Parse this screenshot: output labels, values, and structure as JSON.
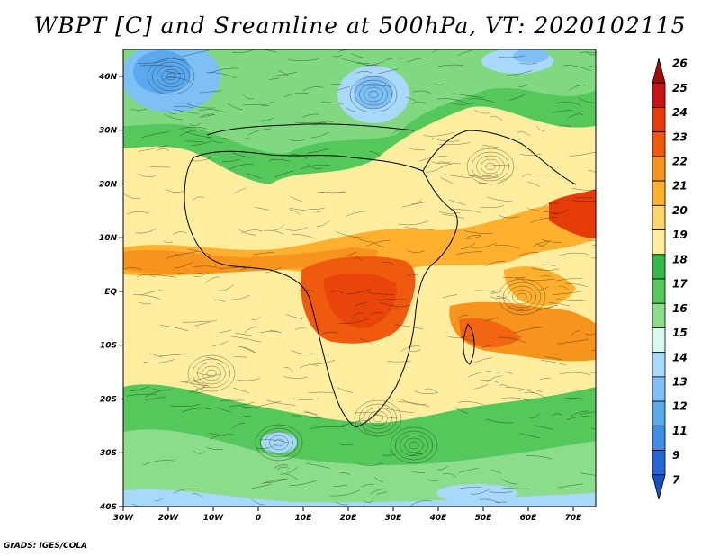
{
  "title": "WBPT [C] and Sreamline at 500hPa, VT: 2020102115",
  "credit": "GrADS: IGES/COLA",
  "map": {
    "lat_labels": [
      "40N",
      "30N",
      "20N",
      "10N",
      "EQ",
      "10S",
      "20S",
      "30S",
      "40S"
    ],
    "lon_labels": [
      "30W",
      "20W",
      "10W",
      "0",
      "10E",
      "20E",
      "30E",
      "40E",
      "50E",
      "60E",
      "70E"
    ],
    "lat_range": [
      -40,
      45
    ],
    "lon_range": [
      -30,
      75
    ]
  },
  "colorbar": {
    "levels": [
      "26",
      "25",
      "24",
      "23",
      "22",
      "21",
      "20",
      "19",
      "18",
      "17",
      "16",
      "15",
      "14",
      "13",
      "12",
      "11",
      "9",
      "7"
    ],
    "colors": [
      "#a50a0a",
      "#c81414",
      "#e63c0a",
      "#f05a0f",
      "#f7941d",
      "#ffb02e",
      "#ffd46b",
      "#ffeea0",
      "#37b84a",
      "#54c85a",
      "#8bdc8b",
      "#d7f9f0",
      "#a8d8fa",
      "#7ec0f5",
      "#5aa8ee",
      "#3c8ee6",
      "#2468d8",
      "#1450c8"
    ]
  }
}
